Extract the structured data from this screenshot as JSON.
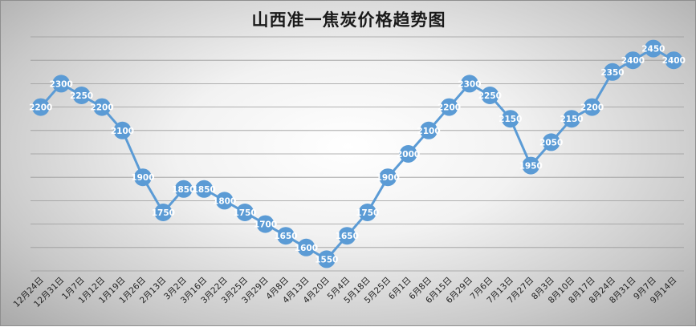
{
  "chart_data": {
    "type": "line",
    "title": "山西准一焦炭价格趋势图",
    "categories": [
      "12月24日",
      "12月31日",
      "1月7日",
      "1月12日",
      "1月19日",
      "1月26日",
      "2月13日",
      "3月2日",
      "3月16日",
      "3月22日",
      "3月25日",
      "3月29日",
      "4月8日",
      "4月13日",
      "4月20日",
      "5月4日",
      "5月18日",
      "5月25日",
      "6月1日",
      "6月8日",
      "6月15日",
      "6月29日",
      "7月6日",
      "7月13日",
      "7月27日",
      "8月3日",
      "8月10日",
      "8月17日",
      "8月24日",
      "8月31日",
      "9月7日",
      "9月14日"
    ],
    "values": [
      2200,
      2300,
      2250,
      2200,
      2100,
      1900,
      1750,
      1850,
      1850,
      1800,
      1750,
      1700,
      1650,
      1600,
      1550,
      1650,
      1750,
      1900,
      2000,
      2100,
      2200,
      2300,
      2250,
      2150,
      1950,
      2050,
      2150,
      2200,
      2350,
      2400,
      2450,
      2400
    ],
    "ylim": [
      1500,
      2500
    ],
    "grid": true,
    "line_color": "#5b9bd5",
    "marker_color": "#5b9bd5",
    "label_color": "#ffffff"
  }
}
